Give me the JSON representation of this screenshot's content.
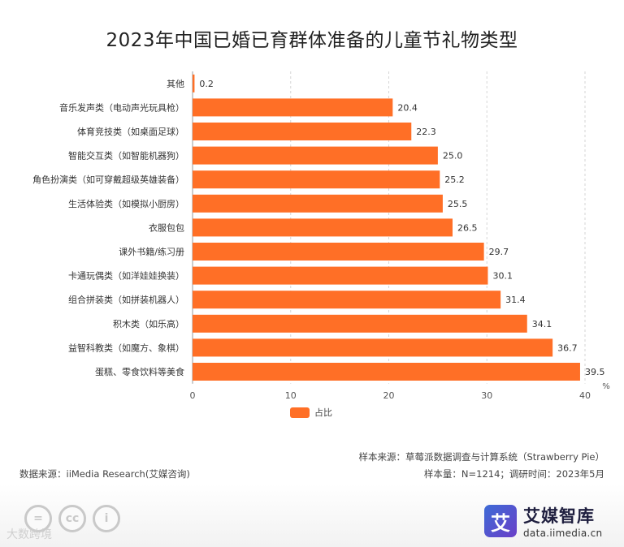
{
  "title": "2023年中国已婚已育群体准备的儿童节礼物类型",
  "chart_data": {
    "type": "bar",
    "orientation": "horizontal",
    "categories": [
      "其他",
      "音乐发声类（电动声光玩具枪）",
      "体育竞技类（如桌面足球）",
      "智能交互类（如智能机器狗）",
      "角色扮演类（如可穿戴超级英雄装备）",
      "生活体验类（如模拟小厨房）",
      "衣服包包",
      "课外书籍/练习册",
      "卡通玩偶类（如洋娃娃换装）",
      "组合拼装类（如拼装机器人）",
      "积木类（如乐高）",
      "益智科教类（如魔方、象棋）",
      "蛋糕、零食饮料等美食"
    ],
    "values": [
      0.2,
      20.4,
      22.3,
      25.0,
      25.2,
      25.5,
      26.5,
      29.7,
      30.1,
      31.4,
      34.1,
      36.7,
      39.5
    ],
    "value_labels": [
      "0.2",
      "20.4",
      "22.3",
      "25.0",
      "25.2",
      "25.5",
      "26.5",
      "29.7",
      "30.1",
      "31.4",
      "34.1",
      "36.7",
      "39.5"
    ],
    "xlim": [
      0,
      40
    ],
    "xticks": [
      "0",
      "10",
      "20",
      "30",
      "40"
    ],
    "xunit": "%",
    "series_name": "占比",
    "color": "#FF6F26",
    "grid": true
  },
  "footer": {
    "sample_source": "样本来源：草莓派数据调查与计算系统（Strawberry Pie）",
    "data_source": "数据来源：iiMedia Research(艾媒咨询)",
    "sample_size": "样本量：N=1214；调研时间：2023年5月"
  },
  "brand": {
    "logo_char": "艾",
    "name": "艾媒智库",
    "url": "data.iimedia.cn"
  },
  "watermark": "大数跨境",
  "cc_icons": [
    "=",
    "cc",
    "i"
  ]
}
